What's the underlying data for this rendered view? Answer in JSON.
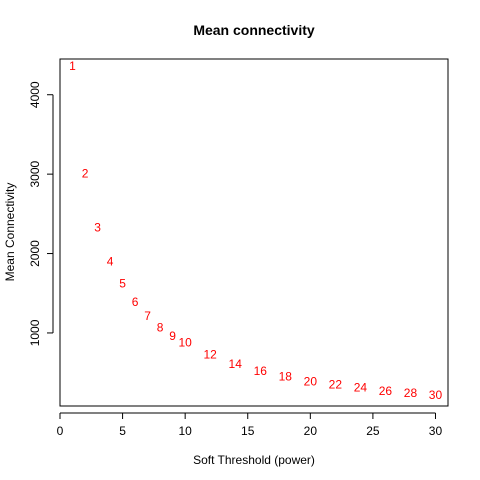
{
  "chart_data": {
    "type": "scatter",
    "title": "Mean connectivity",
    "xlabel": "Soft Threshold (power)",
    "ylabel": "Mean Connectivity",
    "xlim": [
      0,
      31
    ],
    "ylim": [
      80,
      4450
    ],
    "xticks": [
      0,
      5,
      10,
      15,
      20,
      25,
      30
    ],
    "yticks": [
      1000,
      2000,
      3000,
      4000
    ],
    "marker": "text-labels",
    "point_color": "#ff0000",
    "grid": false,
    "points": [
      {
        "x": 1,
        "y": 4350,
        "label": "1"
      },
      {
        "x": 2,
        "y": 3000,
        "label": "2"
      },
      {
        "x": 3,
        "y": 2320,
        "label": "3"
      },
      {
        "x": 4,
        "y": 1890,
        "label": "4"
      },
      {
        "x": 5,
        "y": 1610,
        "label": "5"
      },
      {
        "x": 6,
        "y": 1380,
        "label": "6"
      },
      {
        "x": 7,
        "y": 1200,
        "label": "7"
      },
      {
        "x": 8,
        "y": 1060,
        "label": "8"
      },
      {
        "x": 9,
        "y": 950,
        "label": "9"
      },
      {
        "x": 10,
        "y": 870,
        "label": "10"
      },
      {
        "x": 12,
        "y": 720,
        "label": "12"
      },
      {
        "x": 14,
        "y": 600,
        "label": "14"
      },
      {
        "x": 16,
        "y": 510,
        "label": "16"
      },
      {
        "x": 18,
        "y": 440,
        "label": "18"
      },
      {
        "x": 20,
        "y": 380,
        "label": "20"
      },
      {
        "x": 22,
        "y": 340,
        "label": "22"
      },
      {
        "x": 24,
        "y": 300,
        "label": "24"
      },
      {
        "x": 26,
        "y": 260,
        "label": "26"
      },
      {
        "x": 28,
        "y": 235,
        "label": "28"
      },
      {
        "x": 30,
        "y": 210,
        "label": "30"
      }
    ]
  }
}
